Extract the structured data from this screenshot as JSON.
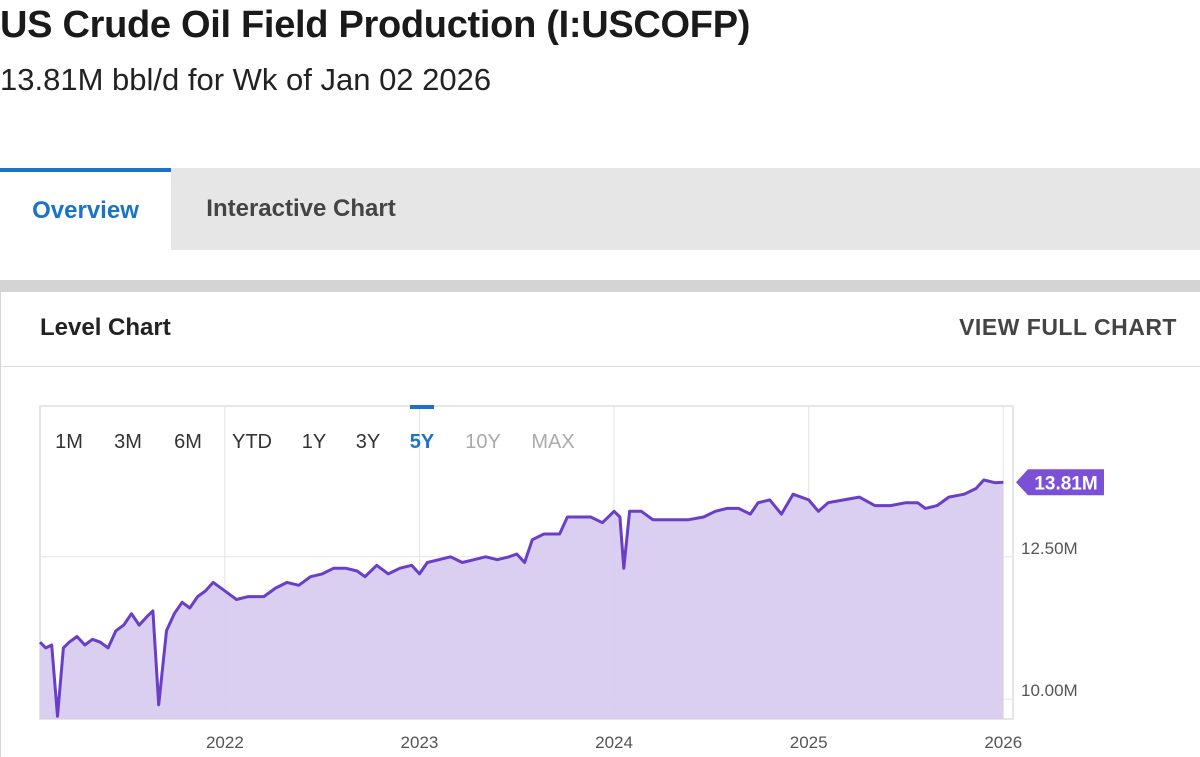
{
  "header": {
    "title": "US Crude Oil Field Production (I:USCOFP)",
    "subtitle": "13.81M bbl/d for Wk of Jan 02 2026"
  },
  "tabs": [
    {
      "label": "Overview",
      "active": true
    },
    {
      "label": "Interactive Chart",
      "active": false
    }
  ],
  "card": {
    "title": "Level Chart",
    "view_full_label": "VIEW FULL CHART"
  },
  "range_selector": {
    "options": [
      "1M",
      "3M",
      "6M",
      "YTD",
      "1Y",
      "3Y",
      "5Y",
      "10Y",
      "MAX"
    ],
    "selected": "5Y",
    "disabled": [
      "10Y",
      "MAX"
    ]
  },
  "colors": {
    "accent": "#1a73c8",
    "series_line": "#6a3fc8",
    "series_fill": "#d9ccf0",
    "label_bg": "#7b4fd6"
  },
  "chart_data": {
    "type": "area",
    "title": "",
    "xlabel": "",
    "ylabel": "",
    "x_ticks": [
      "2022",
      "2023",
      "2024",
      "2025",
      "2026"
    ],
    "y_ticks": [
      "12.50M",
      "10.00M"
    ],
    "ylim": [
      9.65,
      15.15
    ],
    "xlim": [
      2021.05,
      2026.05
    ],
    "grid": true,
    "y_axis_side": "right",
    "last_value_label": "13.81M",
    "series": [
      {
        "values": [
          [
            2021.05,
            11.0
          ],
          [
            2021.08,
            10.9
          ],
          [
            2021.11,
            10.95
          ],
          [
            2021.14,
            9.7
          ],
          [
            2021.17,
            10.9
          ],
          [
            2021.2,
            11.0
          ],
          [
            2021.24,
            11.1
          ],
          [
            2021.28,
            10.95
          ],
          [
            2021.32,
            11.05
          ],
          [
            2021.36,
            11.0
          ],
          [
            2021.4,
            10.9
          ],
          [
            2021.44,
            11.2
          ],
          [
            2021.48,
            11.3
          ],
          [
            2021.52,
            11.5
          ],
          [
            2021.56,
            11.3
          ],
          [
            2021.6,
            11.45
          ],
          [
            2021.63,
            11.55
          ],
          [
            2021.66,
            9.9
          ],
          [
            2021.7,
            11.2
          ],
          [
            2021.74,
            11.5
          ],
          [
            2021.78,
            11.7
          ],
          [
            2021.82,
            11.6
          ],
          [
            2021.86,
            11.8
          ],
          [
            2021.9,
            11.9
          ],
          [
            2021.94,
            12.05
          ],
          [
            2021.98,
            11.95
          ],
          [
            2022.02,
            11.85
          ],
          [
            2022.06,
            11.75
          ],
          [
            2022.12,
            11.8
          ],
          [
            2022.2,
            11.8
          ],
          [
            2022.26,
            11.95
          ],
          [
            2022.32,
            12.05
          ],
          [
            2022.38,
            12.0
          ],
          [
            2022.44,
            12.15
          ],
          [
            2022.5,
            12.2
          ],
          [
            2022.56,
            12.3
          ],
          [
            2022.62,
            12.3
          ],
          [
            2022.68,
            12.25
          ],
          [
            2022.72,
            12.15
          ],
          [
            2022.78,
            12.35
          ],
          [
            2022.84,
            12.2
          ],
          [
            2022.9,
            12.3
          ],
          [
            2022.96,
            12.35
          ],
          [
            2023.0,
            12.2
          ],
          [
            2023.04,
            12.4
          ],
          [
            2023.1,
            12.45
          ],
          [
            2023.16,
            12.5
          ],
          [
            2023.22,
            12.4
          ],
          [
            2023.28,
            12.45
          ],
          [
            2023.34,
            12.5
          ],
          [
            2023.4,
            12.45
          ],
          [
            2023.46,
            12.5
          ],
          [
            2023.5,
            12.55
          ],
          [
            2023.54,
            12.4
          ],
          [
            2023.58,
            12.8
          ],
          [
            2023.64,
            12.9
          ],
          [
            2023.72,
            12.9
          ],
          [
            2023.76,
            13.2
          ],
          [
            2023.82,
            13.2
          ],
          [
            2023.88,
            13.2
          ],
          [
            2023.94,
            13.1
          ],
          [
            2024.0,
            13.3
          ],
          [
            2024.03,
            13.2
          ],
          [
            2024.05,
            12.3
          ],
          [
            2024.08,
            13.3
          ],
          [
            2024.14,
            13.3
          ],
          [
            2024.2,
            13.15
          ],
          [
            2024.3,
            13.15
          ],
          [
            2024.38,
            13.15
          ],
          [
            2024.46,
            13.2
          ],
          [
            2024.52,
            13.3
          ],
          [
            2024.58,
            13.35
          ],
          [
            2024.64,
            13.35
          ],
          [
            2024.7,
            13.25
          ],
          [
            2024.74,
            13.45
          ],
          [
            2024.8,
            13.5
          ],
          [
            2024.86,
            13.25
          ],
          [
            2024.92,
            13.6
          ],
          [
            2025.0,
            13.5
          ],
          [
            2025.05,
            13.3
          ],
          [
            2025.1,
            13.45
          ],
          [
            2025.18,
            13.5
          ],
          [
            2025.26,
            13.55
          ],
          [
            2025.34,
            13.4
          ],
          [
            2025.42,
            13.4
          ],
          [
            2025.5,
            13.45
          ],
          [
            2025.56,
            13.45
          ],
          [
            2025.6,
            13.35
          ],
          [
            2025.66,
            13.4
          ],
          [
            2025.72,
            13.55
          ],
          [
            2025.8,
            13.6
          ],
          [
            2025.86,
            13.7
          ],
          [
            2025.9,
            13.85
          ],
          [
            2025.96,
            13.8
          ],
          [
            2026.0,
            13.81
          ]
        ]
      }
    ]
  }
}
